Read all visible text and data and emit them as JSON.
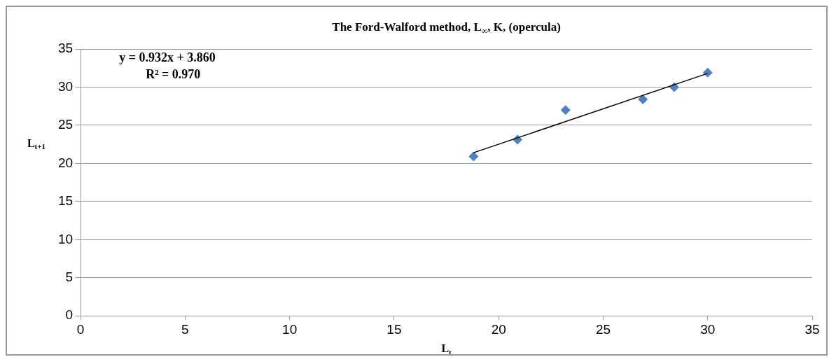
{
  "chart_data": {
    "type": "scatter",
    "title": "The Ford-Walford method, L$_{∞}$, K, (opercula)",
    "xlabel": "L$_{t}$",
    "ylabel": "L$_{t+1}$",
    "series": [
      {
        "type": "scatter",
        "color": "#4f81bd",
        "x": [
          18.8,
          20.9,
          23.2,
          26.9,
          28.4,
          30.0
        ],
        "values": [
          20.9,
          23.1,
          27.0,
          28.4,
          30.0,
          31.9
        ],
        "marker": "diamond"
      },
      {
        "type": "line",
        "color": "#000000",
        "x": [
          18.8,
          30.0
        ],
        "values": [
          21.4,
          31.8
        ],
        "marker": "none"
      }
    ],
    "annotations": [
      "y = 0.932x + 3.860",
      "R² = 0.970"
    ],
    "xlim": [
      0,
      35
    ],
    "xticks": [
      0,
      5,
      10,
      15,
      20,
      25,
      30,
      35
    ],
    "ylim": [
      0,
      35
    ],
    "yticks": [
      0,
      5,
      10,
      15,
      20,
      25,
      30,
      35
    ],
    "grid": "y",
    "legend": false
  }
}
